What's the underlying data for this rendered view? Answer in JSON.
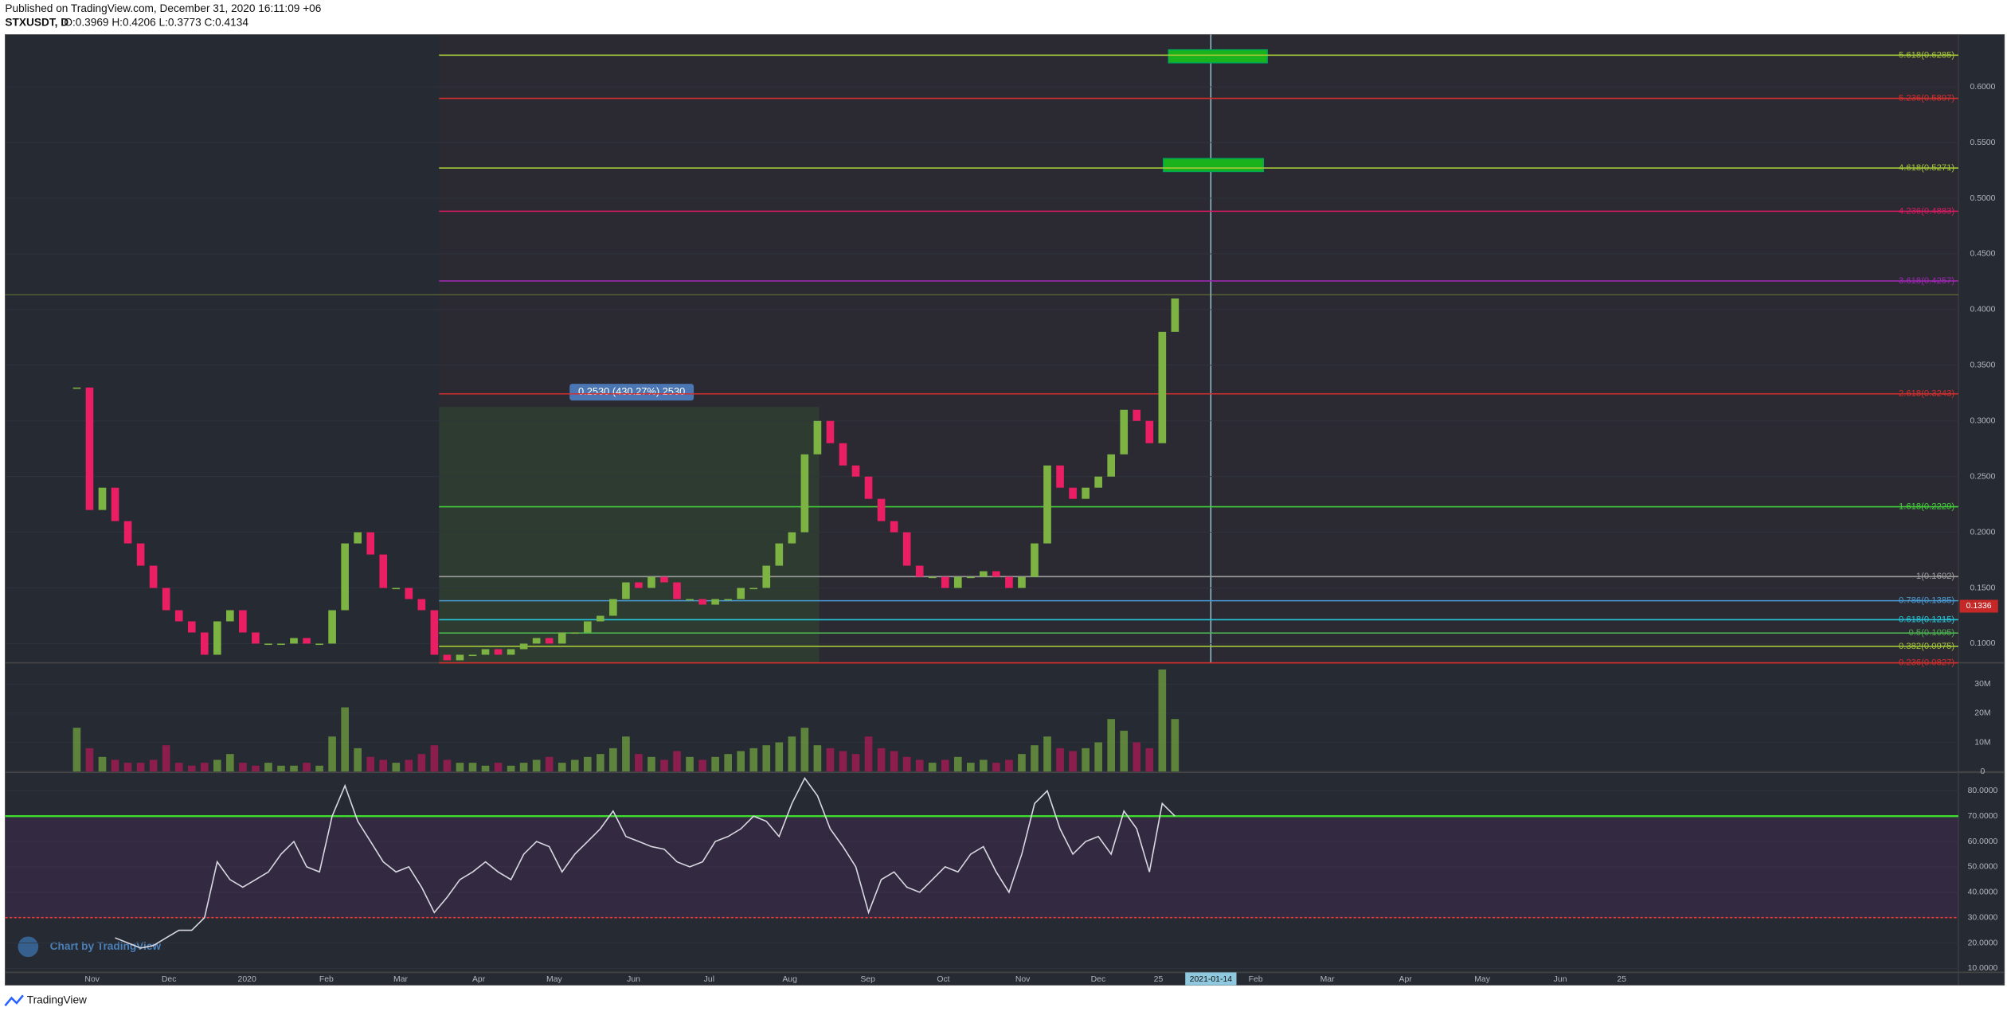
{
  "header": {
    "published": "Published on TradingView.com, December 31, 2020 16:11:09 +06",
    "symbol": "STXUSDT, D",
    "ohlc": "O:0.3969 H:0.4206 L:0.3773 C:0.4134"
  },
  "chart_data": [
    {
      "type": "candlestick",
      "values": [
        0.33,
        0.22,
        0.24,
        0.21,
        0.19,
        0.17,
        0.15,
        0.13,
        0.12,
        0.11,
        0.09,
        0.12,
        0.13,
        0.11,
        0.1,
        0.1,
        0.1,
        0.105,
        0.1,
        0.1,
        0.13,
        0.19,
        0.2,
        0.18,
        0.15,
        0.15,
        0.14,
        0.13,
        0.09,
        0.085,
        0.09,
        0.09,
        0.095,
        0.09,
        0.095,
        0.1,
        0.105,
        0.1,
        0.11,
        0.11,
        0.12,
        0.125,
        0.14,
        0.155,
        0.15,
        0.16,
        0.155,
        0.14,
        0.14,
        0.135,
        0.14,
        0.14,
        0.15,
        0.15,
        0.17,
        0.19,
        0.2,
        0.27,
        0.3,
        0.28,
        0.26,
        0.25,
        0.23,
        0.21,
        0.2,
        0.17,
        0.16,
        0.16,
        0.15,
        0.16,
        0.16,
        0.165,
        0.16,
        0.15,
        0.16,
        0.19,
        0.26,
        0.24,
        0.23,
        0.24,
        0.25,
        0.27,
        0.31,
        0.3,
        0.28,
        0.38,
        0.41
      ],
      "colors": {
        "up": "#7cb342",
        "down": "#e91e63"
      },
      "ylim": [
        0.0828,
        0.647
      ],
      "yticks": [
        {
          "value": 0.1,
          "label": "0.1000"
        },
        {
          "value": 0.15,
          "label": "0.1500"
        },
        {
          "value": 0.2,
          "label": "0.2000"
        },
        {
          "value": 0.25,
          "label": "0.2500"
        },
        {
          "value": 0.3,
          "label": "0.3000"
        },
        {
          "value": 0.35,
          "label": "0.3500"
        },
        {
          "value": 0.4,
          "label": "0.4000"
        },
        {
          "value": 0.45,
          "label": "0.4500"
        },
        {
          "value": 0.5,
          "label": "0.5000"
        },
        {
          "value": 0.55,
          "label": "0.5500"
        },
        {
          "value": 0.6,
          "label": "0.6000"
        }
      ],
      "fib_levels": [
        {
          "value": 0.6285,
          "label": "5.618(0.6285)",
          "color": "#a4c639"
        },
        {
          "value": 0.5897,
          "label": "5.236(0.5897)",
          "color": "#d32f2f"
        },
        {
          "value": 0.5271,
          "label": "4.618(0.5271)",
          "color": "#a4c639"
        },
        {
          "value": 0.4883,
          "label": "4.236(0.4883)",
          "color": "#d81b60"
        },
        {
          "value": 0.4257,
          "label": "3.618(0.4257)",
          "color": "#9c27b0"
        },
        {
          "value": 0.3243,
          "label": "2.618(0.3243)",
          "color": "#d32f2f"
        },
        {
          "value": 0.2229,
          "label": "1.618(0.2229)",
          "color": "#43d13a"
        },
        {
          "value": 0.1602,
          "label": "1(0.1602)",
          "color": "#9e9e9e"
        },
        {
          "value": 0.1385,
          "label": "0.786(0.1385)",
          "color": "#4a9bd4"
        },
        {
          "value": 0.1215,
          "label": "0.618(0.1215)",
          "color": "#26c6da"
        },
        {
          "value": 0.1095,
          "label": "0.5(0.1095)",
          "color": "#4caf50"
        },
        {
          "value": 0.0975,
          "label": "0.382(0.0975)",
          "color": "#a4c639"
        },
        {
          "value": 0.0827,
          "label": "0.236(0.0827)",
          "color": "#d32f2f"
        }
      ],
      "last_close": 0.4134,
      "price_marker": {
        "value": 0.1336,
        "label": "0.1336"
      },
      "measure_label": "0.2530 (430.27%) 2530"
    },
    {
      "type": "bar",
      "values": [
        15000000,
        8000000,
        5000000,
        4000000,
        3000000,
        3000000,
        4000000,
        9000000,
        3000000,
        2000000,
        3000000,
        4000000,
        6000000,
        3000000,
        2000000,
        3000000,
        2000000,
        2000000,
        3000000,
        2000000,
        12000000,
        22000000,
        8000000,
        5000000,
        4000000,
        3000000,
        4000000,
        6000000,
        9000000,
        4000000,
        3000000,
        3000000,
        2000000,
        3000000,
        2000000,
        3000000,
        4000000,
        5000000,
        3000000,
        4000000,
        5000000,
        6000000,
        8000000,
        12000000,
        6000000,
        5000000,
        4000000,
        7000000,
        5000000,
        4000000,
        5000000,
        6000000,
        7000000,
        8000000,
        9000000,
        10000000,
        12000000,
        15000000,
        9000000,
        8000000,
        7000000,
        6000000,
        12000000,
        8000000,
        7000000,
        5000000,
        4000000,
        3000000,
        4000000,
        5000000,
        3000000,
        4000000,
        3000000,
        4000000,
        6000000,
        9000000,
        12000000,
        8000000,
        7000000,
        8000000,
        10000000,
        18000000,
        14000000,
        10000000,
        8000000,
        35000000,
        18000000
      ],
      "ylim": [
        0,
        37300000
      ],
      "yticks": [
        0,
        {
          "value": 10000000,
          "label": "10M"
        },
        {
          "value": 20000000,
          "label": "20M"
        },
        {
          "value": 30000000,
          "label": "30M"
        }
      ]
    },
    {
      "type": "line",
      "color": "#d8d8e0",
      "values": [
        null,
        null,
        null,
        22,
        20,
        18,
        19,
        22,
        25,
        25,
        30,
        52,
        45,
        42,
        45,
        48,
        55,
        60,
        50,
        48,
        70,
        82,
        68,
        60,
        52,
        48,
        50,
        42,
        32,
        38,
        45,
        48,
        52,
        48,
        45,
        55,
        60,
        58,
        48,
        55,
        60,
        65,
        72,
        62,
        60,
        58,
        57,
        52,
        50,
        52,
        60,
        62,
        65,
        70,
        68,
        62,
        75,
        85,
        78,
        65,
        58,
        50,
        32,
        45,
        48,
        42,
        40,
        45,
        50,
        48,
        55,
        58,
        48,
        40,
        55,
        75,
        80,
        65,
        55,
        60,
        62,
        55,
        72,
        65,
        48,
        75,
        70
      ],
      "ylim": [
        8.4,
        86.6
      ],
      "yticks": [
        {
          "value": 10,
          "label": "10.0000"
        },
        {
          "value": 20,
          "label": "20.0000"
        },
        {
          "value": 30,
          "label": "30.0000"
        },
        {
          "value": 40,
          "label": "40.0000"
        },
        {
          "value": 50,
          "label": "50.0000"
        },
        {
          "value": 60,
          "label": "60.0000"
        },
        {
          "value": 70,
          "label": "70.0000"
        },
        {
          "value": 80,
          "label": "80.0000"
        }
      ],
      "levels": [
        {
          "value": 70,
          "color": "#3ddc2f"
        },
        {
          "value": 30,
          "color": "#e53935"
        }
      ]
    }
  ],
  "time_axis": {
    "labels": [
      "Nov",
      "Dec",
      "2020",
      "Feb",
      "Mar",
      "Apr",
      "May",
      "Jun",
      "Jul",
      "Aug",
      "Sep",
      "Oct",
      "Nov",
      "Dec",
      "25",
      "2021-01-14",
      "Feb",
      "Mar",
      "Apr",
      "May",
      "Jun",
      "25"
    ]
  },
  "watermark": "Chart by TradingView",
  "footer": "TradingView"
}
